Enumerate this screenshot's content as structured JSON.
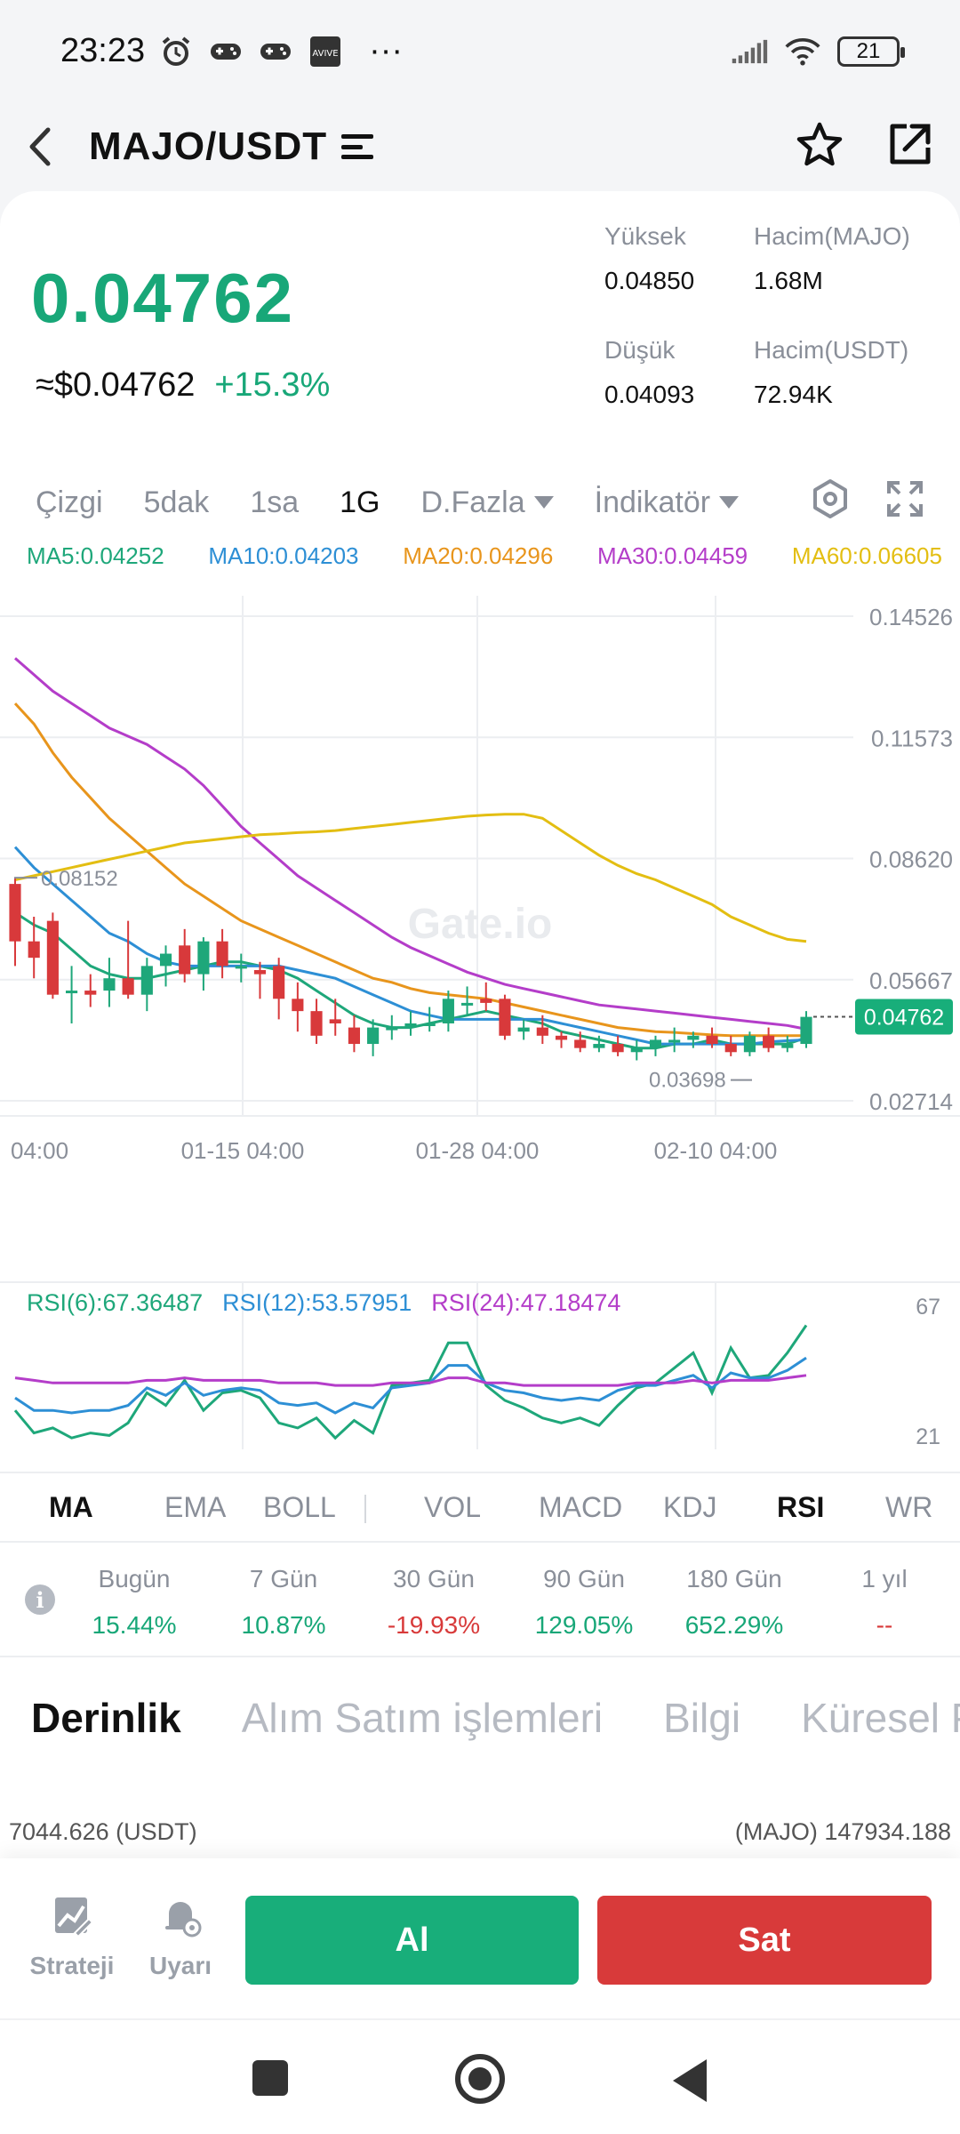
{
  "status_bar": {
    "time": "23:23",
    "battery": "21",
    "more": "···",
    "app_tag": "AVIVE"
  },
  "header": {
    "pair": "MAJO/USDT"
  },
  "price": {
    "last": "0.04762",
    "usd": "≈$0.04762",
    "change": "+15.3%"
  },
  "stats": [
    {
      "label": "Yüksek",
      "value": "0.04850"
    },
    {
      "label": "Hacim(MAJO)",
      "value": "1.68M"
    },
    {
      "label": "Düşük",
      "value": "0.04093"
    },
    {
      "label": "Hacim(USDT)",
      "value": "72.94K"
    }
  ],
  "timeframes": [
    {
      "label": "Çizgi",
      "active": false
    },
    {
      "label": "5dak",
      "active": false
    },
    {
      "label": "1sa",
      "active": false
    },
    {
      "label": "1G",
      "active": true
    },
    {
      "label": "D.Fazla",
      "active": false,
      "dropdown": true
    },
    {
      "label": "İndikatör",
      "active": false,
      "dropdown": true
    }
  ],
  "ma_legend": [
    {
      "label": "MA5:0.04252",
      "color": "#1ea77a"
    },
    {
      "label": "MA10:0.04203",
      "color": "#2d8fd5"
    },
    {
      "label": "MA20:0.04296",
      "color": "#e8951c"
    },
    {
      "label": "MA30:0.04459",
      "color": "#b43dc9"
    },
    {
      "label": "MA60:0.06605",
      "color": "#e3be12"
    }
  ],
  "rsi_legend": [
    {
      "label": "RSI(6):67.36487",
      "color": "#1ea77a"
    },
    {
      "label": "RSI(12):53.57951",
      "color": "#2d8fd5"
    },
    {
      "label": "RSI(24):47.18474",
      "color": "#b43dc9"
    }
  ],
  "chart_data": {
    "type": "candlestick",
    "y_ticks": [
      "0.14526",
      "0.11573",
      "0.08620",
      "0.05667",
      "0.02714"
    ],
    "ylim": [
      0.02714,
      0.14526
    ],
    "x_ticks": [
      "04:00",
      "01-15 04:00",
      "01-28 04:00",
      "02-10 04:00"
    ],
    "current_price_label": "0.04762",
    "high_marker": "0.08152",
    "low_marker": "0.03698",
    "watermark": "Gate.io",
    "candles": [
      [
        0.08,
        0.0815,
        0.06,
        0.066
      ],
      [
        0.066,
        0.072,
        0.057,
        0.062
      ],
      [
        0.071,
        0.073,
        0.052,
        0.053
      ],
      [
        0.054,
        0.06,
        0.046,
        0.054
      ],
      [
        0.054,
        0.058,
        0.05,
        0.053
      ],
      [
        0.054,
        0.062,
        0.05,
        0.057
      ],
      [
        0.057,
        0.071,
        0.052,
        0.053
      ],
      [
        0.053,
        0.062,
        0.049,
        0.06
      ],
      [
        0.06,
        0.065,
        0.055,
        0.063
      ],
      [
        0.065,
        0.069,
        0.056,
        0.058
      ],
      [
        0.058,
        0.067,
        0.054,
        0.066
      ],
      [
        0.066,
        0.069,
        0.057,
        0.06
      ],
      [
        0.06,
        0.063,
        0.056,
        0.06
      ],
      [
        0.059,
        0.061,
        0.052,
        0.058
      ],
      [
        0.06,
        0.062,
        0.047,
        0.052
      ],
      [
        0.052,
        0.056,
        0.044,
        0.049
      ],
      [
        0.049,
        0.052,
        0.041,
        0.043
      ],
      [
        0.047,
        0.052,
        0.043,
        0.046
      ],
      [
        0.045,
        0.048,
        0.039,
        0.041
      ],
      [
        0.041,
        0.047,
        0.038,
        0.045
      ],
      [
        0.045,
        0.048,
        0.042,
        0.045
      ],
      [
        0.045,
        0.049,
        0.043,
        0.046
      ],
      [
        0.046,
        0.05,
        0.044,
        0.046
      ],
      [
        0.046,
        0.054,
        0.044,
        0.052
      ],
      [
        0.051,
        0.055,
        0.048,
        0.051
      ],
      [
        0.052,
        0.056,
        0.049,
        0.051
      ],
      [
        0.052,
        0.053,
        0.042,
        0.043
      ],
      [
        0.044,
        0.047,
        0.042,
        0.045
      ],
      [
        0.045,
        0.048,
        0.041,
        0.043
      ],
      [
        0.043,
        0.044,
        0.04,
        0.042
      ],
      [
        0.042,
        0.044,
        0.039,
        0.04
      ],
      [
        0.04,
        0.043,
        0.039,
        0.041
      ],
      [
        0.041,
        0.043,
        0.038,
        0.039
      ],
      [
        0.039,
        0.042,
        0.037,
        0.04
      ],
      [
        0.04,
        0.043,
        0.038,
        0.042
      ],
      [
        0.042,
        0.045,
        0.039,
        0.042
      ],
      [
        0.042,
        0.044,
        0.04,
        0.043
      ],
      [
        0.043,
        0.045,
        0.04,
        0.041
      ],
      [
        0.041,
        0.043,
        0.038,
        0.039
      ],
      [
        0.039,
        0.044,
        0.038,
        0.043
      ],
      [
        0.043,
        0.045,
        0.039,
        0.04
      ],
      [
        0.04,
        0.043,
        0.039,
        0.041
      ],
      [
        0.041,
        0.049,
        0.04,
        0.0476
      ]
    ],
    "series": [
      {
        "name": "MA5",
        "color": "#1ea77a",
        "values": [
          0.073,
          0.07,
          0.068,
          0.064,
          0.06,
          0.058,
          0.057,
          0.057,
          0.058,
          0.059,
          0.06,
          0.061,
          0.061,
          0.06,
          0.059,
          0.057,
          0.054,
          0.051,
          0.048,
          0.046,
          0.045,
          0.045,
          0.046,
          0.047,
          0.048,
          0.049,
          0.048,
          0.047,
          0.046,
          0.044,
          0.043,
          0.042,
          0.041,
          0.04,
          0.04,
          0.041,
          0.041,
          0.042,
          0.041,
          0.041,
          0.041,
          0.041,
          0.0425
        ]
      },
      {
        "name": "MA10",
        "color": "#2d8fd5",
        "values": [
          0.089,
          0.084,
          0.08,
          0.076,
          0.072,
          0.068,
          0.066,
          0.063,
          0.061,
          0.06,
          0.06,
          0.06,
          0.06,
          0.06,
          0.06,
          0.059,
          0.058,
          0.057,
          0.055,
          0.053,
          0.051,
          0.049,
          0.048,
          0.047,
          0.047,
          0.047,
          0.047,
          0.047,
          0.047,
          0.046,
          0.045,
          0.044,
          0.043,
          0.042,
          0.041,
          0.041,
          0.041,
          0.041,
          0.041,
          0.041,
          0.0415,
          0.0418,
          0.042
        ]
      },
      {
        "name": "MA20",
        "color": "#e8951c",
        "values": [
          0.124,
          0.119,
          0.112,
          0.106,
          0.101,
          0.096,
          0.092,
          0.088,
          0.084,
          0.08,
          0.077,
          0.074,
          0.071,
          0.069,
          0.067,
          0.065,
          0.063,
          0.061,
          0.059,
          0.057,
          0.056,
          0.0545,
          0.0535,
          0.053,
          0.0525,
          0.052,
          0.051,
          0.05,
          0.049,
          0.048,
          0.047,
          0.046,
          0.045,
          0.0445,
          0.044,
          0.0438,
          0.0435,
          0.0432,
          0.043,
          0.043,
          0.043,
          0.043,
          0.043
        ]
      },
      {
        "name": "MA30",
        "color": "#b43dc9",
        "values": [
          0.135,
          0.131,
          0.127,
          0.124,
          0.121,
          0.118,
          0.116,
          0.114,
          0.111,
          0.108,
          0.104,
          0.099,
          0.094,
          0.09,
          0.086,
          0.082,
          0.079,
          0.076,
          0.073,
          0.07,
          0.067,
          0.0645,
          0.0625,
          0.0605,
          0.0585,
          0.057,
          0.0555,
          0.0545,
          0.0535,
          0.0525,
          0.0515,
          0.0505,
          0.05,
          0.0495,
          0.049,
          0.0485,
          0.048,
          0.0475,
          0.047,
          0.0465,
          0.046,
          0.0455,
          0.0446
        ]
      },
      {
        "name": "MA60",
        "color": "#e3be12",
        "values": [
          0.081,
          0.082,
          0.083,
          0.084,
          0.085,
          0.086,
          0.087,
          0.088,
          0.089,
          0.09,
          0.0905,
          0.091,
          0.0915,
          0.092,
          0.0922,
          0.0925,
          0.0927,
          0.093,
          0.0935,
          0.094,
          0.0945,
          0.095,
          0.0955,
          0.096,
          0.0965,
          0.0968,
          0.097,
          0.097,
          0.096,
          0.093,
          0.09,
          0.087,
          0.0845,
          0.0825,
          0.081,
          0.079,
          0.077,
          0.075,
          0.072,
          0.07,
          0.068,
          0.0665,
          0.066
        ]
      }
    ],
    "rsi": {
      "y_ticks": [
        "67",
        "21"
      ],
      "ylim": [
        21,
        75
      ],
      "series": [
        {
          "name": "RSI(6)",
          "color": "#1ea77a",
          "values": [
            33,
            24,
            26,
            22,
            24,
            23,
            28,
            40,
            35,
            45,
            33,
            40,
            41,
            38,
            28,
            26,
            30,
            22,
            29,
            24,
            43,
            44,
            45,
            60,
            60,
            43,
            37,
            34,
            30,
            28,
            30,
            27,
            35,
            42,
            44,
            50,
            56,
            40,
            58,
            46,
            47,
            56,
            67
          ]
        },
        {
          "name": "RSI(12)",
          "color": "#2d8fd5",
          "values": [
            38,
            33,
            33,
            32,
            33,
            33,
            35,
            42,
            39,
            44,
            39,
            41,
            42,
            41,
            36,
            35,
            36,
            32,
            36,
            34,
            42,
            43,
            44,
            51,
            51,
            44,
            41,
            40,
            38,
            37,
            38,
            37,
            41,
            43,
            43,
            45,
            47,
            42,
            48,
            46,
            46,
            49,
            54
          ]
        },
        {
          "name": "RSI(24)",
          "color": "#b43dc9",
          "values": [
            46,
            45,
            44,
            44,
            44,
            44,
            44,
            45,
            45,
            46,
            45,
            45,
            45,
            45,
            44,
            44,
            44,
            43,
            43,
            43,
            44,
            44,
            44,
            46,
            46,
            44,
            44,
            43,
            43,
            43,
            43,
            43,
            43,
            44,
            44,
            44,
            45,
            44,
            45,
            45,
            45,
            46,
            47
          ]
        }
      ]
    }
  },
  "indicators": [
    {
      "label": "MA",
      "active": true
    },
    {
      "label": "EMA",
      "active": false
    },
    {
      "label": "BOLL",
      "active": false
    },
    {
      "label": "VOL",
      "active": false
    },
    {
      "label": "MACD",
      "active": false
    },
    {
      "label": "KDJ",
      "active": false
    },
    {
      "label": "RSI",
      "active": true
    },
    {
      "label": "WR",
      "active": false
    }
  ],
  "performance": [
    {
      "label": "Bugün",
      "value": "15.44%",
      "color": "#18a778"
    },
    {
      "label": "7 Gün",
      "value": "10.87%",
      "color": "#18a778"
    },
    {
      "label": "30 Gün",
      "value": "-19.93%",
      "color": "#d83a3a"
    },
    {
      "label": "90 Gün",
      "value": "129.05%",
      "color": "#18a778"
    },
    {
      "label": "180 Gün",
      "value": "652.29%",
      "color": "#18a778"
    },
    {
      "label": "1 yıl",
      "value": "--",
      "color": "#d83a3a"
    }
  ],
  "depth_tabs": [
    {
      "label": "Derinlik",
      "active": true
    },
    {
      "label": "Alım Satım işlemleri",
      "active": false
    },
    {
      "label": "Bilgi",
      "active": false
    },
    {
      "label": "Küresel Pi",
      "active": false
    }
  ],
  "depth_totals": {
    "left": "7044.626 (USDT)",
    "right": "(MAJO) 147934.188"
  },
  "bottom": {
    "strategy": "Strateji",
    "alert": "Uyarı",
    "buy": "Al",
    "sell": "Sat"
  }
}
